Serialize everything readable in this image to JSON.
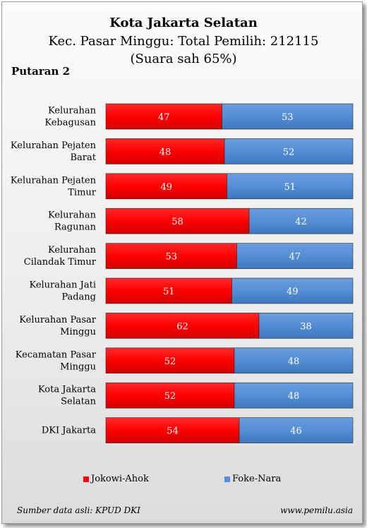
{
  "chart_data": {
    "type": "bar",
    "stacked": true,
    "orientation": "horizontal",
    "title": "Kota Jakarta Selatan",
    "subtitle": "Kec. Pasar Minggu: Total Pemilih: 212115",
    "subtitle2": "(Suara sah 65%)",
    "round_label": "Putaran 2",
    "categories": [
      [
        "Kelurahan",
        "Kebagusan"
      ],
      [
        "Kelurahan Pejaten",
        "Barat"
      ],
      [
        "Kelurahan Pejaten",
        "Timur"
      ],
      [
        "Kelurahan",
        "Ragunan"
      ],
      [
        "Kelurahan",
        "Cilandak Timur"
      ],
      [
        "Kelurahan Jati",
        "Padang"
      ],
      [
        "Kelurahan Pasar",
        "Minggu"
      ],
      [
        "Kecamatan Pasar",
        "Minggu"
      ],
      [
        "Kota Jakarta",
        "Selatan"
      ],
      [
        "DKI Jakarta"
      ]
    ],
    "series": [
      {
        "name": "Jokowi-Ahok",
        "color": "#ff0000",
        "values": [
          47,
          48,
          49,
          58,
          53,
          51,
          62,
          52,
          52,
          54
        ]
      },
      {
        "name": "Foke-Nara",
        "color": "#558ed5",
        "values": [
          53,
          52,
          51,
          42,
          47,
          49,
          38,
          48,
          48,
          46
        ]
      }
    ],
    "xlim": [
      0,
      100
    ],
    "legend_position": "bottom"
  },
  "footer": {
    "source": "Sumber data asli: KPUD DKI",
    "site": "www.pemilu.asia"
  }
}
